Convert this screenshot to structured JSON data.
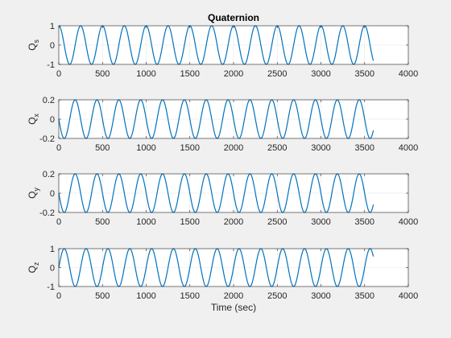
{
  "figure": {
    "background": "#f0f0f0",
    "axes_background": "#ffffff",
    "line_color": "#0072bd",
    "grid_color": "#e6e6e6",
    "axis_color": "#262626"
  },
  "chart_data": [
    {
      "type": "line",
      "title": "Quaternion",
      "xlabel": "",
      "ylabel_main": "Q",
      "ylabel_sub": "s",
      "xlim": [
        0,
        4000
      ],
      "ylim": [
        -1,
        1
      ],
      "xticks": [
        "0",
        "500",
        "1000",
        "1500",
        "2000",
        "2500",
        "3000",
        "3500",
        "4000"
      ],
      "yticks": [
        "-1",
        "0",
        "1"
      ],
      "grid": true,
      "series": [
        {
          "name": "Qs",
          "x": [
            0,
            3600
          ],
          "waveform": "cos",
          "amplitude": 1.0,
          "period": 250,
          "phase_deg": 0,
          "offset": 0,
          "points": 700
        }
      ]
    },
    {
      "type": "line",
      "title": "",
      "xlabel": "",
      "ylabel_main": "Q",
      "ylabel_sub": "x",
      "xlim": [
        0,
        4000
      ],
      "ylim": [
        -0.2,
        0.2
      ],
      "xticks": [
        "0",
        "500",
        "1000",
        "1500",
        "2000",
        "2500",
        "3000",
        "3500",
        "4000"
      ],
      "yticks": [
        "-0.2",
        "0",
        "0.2"
      ],
      "grid": true,
      "series": [
        {
          "name": "Qx",
          "x": [
            0,
            3600
          ],
          "waveform": "sin",
          "amplitude": 0.2,
          "period": 250,
          "phase_deg": 180,
          "offset": 0,
          "points": 700
        }
      ]
    },
    {
      "type": "line",
      "title": "",
      "xlabel": "",
      "ylabel_main": "Q",
      "ylabel_sub": "y",
      "xlim": [
        0,
        4000
      ],
      "ylim": [
        -0.2,
        0.2
      ],
      "xticks": [
        "0",
        "500",
        "1000",
        "1500",
        "2000",
        "2500",
        "3000",
        "3500",
        "4000"
      ],
      "yticks": [
        "-0.2",
        "0",
        "0.2"
      ],
      "grid": true,
      "series": [
        {
          "name": "Qy",
          "x": [
            0,
            3600
          ],
          "waveform": "sin",
          "amplitude": 0.2,
          "period": 250,
          "phase_deg": 180,
          "offset": 0,
          "points": 700
        }
      ]
    },
    {
      "type": "line",
      "title": "",
      "xlabel": "Time (sec)",
      "ylabel_main": "Q",
      "ylabel_sub": "z",
      "xlim": [
        0,
        4000
      ],
      "ylim": [
        -1,
        1
      ],
      "xticks": [
        "0",
        "500",
        "1000",
        "1500",
        "2000",
        "2500",
        "3000",
        "3500",
        "4000"
      ],
      "yticks": [
        "-1",
        "0",
        "1"
      ],
      "grid": true,
      "series": [
        {
          "name": "Qz",
          "x": [
            0,
            3600
          ],
          "waveform": "sin",
          "amplitude": 1.0,
          "period": 250,
          "phase_deg": 0,
          "offset": 0,
          "points": 700
        }
      ]
    }
  ]
}
